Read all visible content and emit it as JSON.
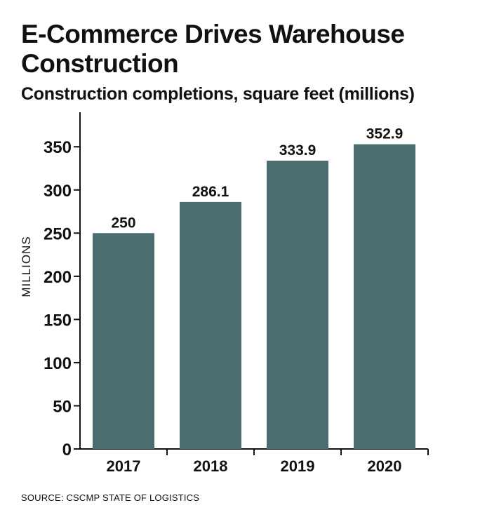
{
  "chart_data": {
    "type": "bar",
    "title": "E-Commerce Drives Warehouse Construction",
    "subtitle": "Construction completions, square feet (millions)",
    "ylabel": "MILLIONS",
    "xlabel": "",
    "categories": [
      "2017",
      "2018",
      "2019",
      "2020"
    ],
    "values": [
      250,
      286.1,
      333.9,
      352.9
    ],
    "data_labels": [
      "250",
      "286.1",
      "333.9",
      "352.9"
    ],
    "ylim": [
      0,
      390
    ],
    "yticks": [
      0,
      50,
      100,
      150,
      200,
      250,
      300,
      350
    ],
    "ytick_labels": [
      "0",
      "50",
      "100",
      "150",
      "200",
      "250",
      "300",
      "350"
    ],
    "grid": false,
    "legend": "none",
    "bar_color": "#4b6e71",
    "source": "SOURCE: CSCMP STATE OF LOGISTICS"
  }
}
